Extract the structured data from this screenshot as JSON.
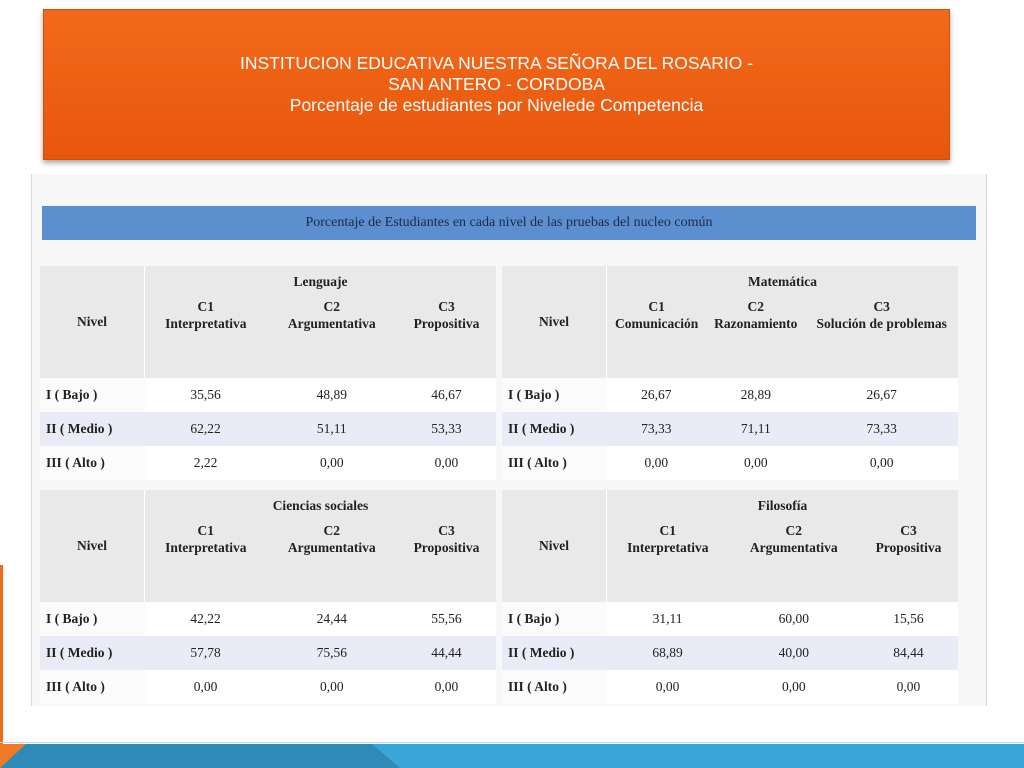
{
  "title": {
    "line1": "INSTITUCION EDUCATIVA NUESTRA SEÑORA DEL ROSARIO -",
    "line2": "SAN ANTERO - CORDOBA",
    "line3": "Porcentaje de estudiantes por Nivelede Competencia"
  },
  "banner": "Porcentaje de Estudiantes en cada nivel de las pruebas del nucleo común",
  "nivel_header": "Nivel",
  "tables": [
    {
      "subject": "Lenguaje",
      "competencies": [
        {
          "code": "C1",
          "name": "Interpretativa"
        },
        {
          "code": "C2",
          "name": "Argumentativa"
        },
        {
          "code": "C3",
          "name": "Propositiva"
        }
      ],
      "rows": [
        {
          "level": "I ( Bajo )",
          "values": [
            "35,56",
            "48,89",
            "46,67"
          ]
        },
        {
          "level": "II ( Medio )",
          "values": [
            "62,22",
            "51,11",
            "53,33"
          ]
        },
        {
          "level": "III ( Alto )",
          "values": [
            "2,22",
            "0,00",
            "0,00"
          ]
        }
      ]
    },
    {
      "subject": "Matemática",
      "competencies": [
        {
          "code": "C1",
          "name": "Comunicación"
        },
        {
          "code": "C2",
          "name": "Razonamiento"
        },
        {
          "code": "C3",
          "name": "Solución de problemas"
        }
      ],
      "rows": [
        {
          "level": "I ( Bajo )",
          "values": [
            "26,67",
            "28,89",
            "26,67"
          ]
        },
        {
          "level": "II ( Medio )",
          "values": [
            "73,33",
            "71,11",
            "73,33"
          ]
        },
        {
          "level": "III ( Alto )",
          "values": [
            "0,00",
            "0,00",
            "0,00"
          ]
        }
      ]
    },
    {
      "subject": "Ciencias sociales",
      "competencies": [
        {
          "code": "C1",
          "name": "Interpretativa"
        },
        {
          "code": "C2",
          "name": "Argumentativa"
        },
        {
          "code": "C3",
          "name": "Propositiva"
        }
      ],
      "rows": [
        {
          "level": "I ( Bajo )",
          "values": [
            "42,22",
            "24,44",
            "55,56"
          ]
        },
        {
          "level": "II ( Medio )",
          "values": [
            "57,78",
            "75,56",
            "44,44"
          ]
        },
        {
          "level": "III ( Alto )",
          "values": [
            "0,00",
            "0,00",
            "0,00"
          ]
        }
      ]
    },
    {
      "subject": "Filosofía",
      "competencies": [
        {
          "code": "C1",
          "name": "Interpretativa"
        },
        {
          "code": "C2",
          "name": "Argumentativa"
        },
        {
          "code": "C3",
          "name": "Propositiva"
        }
      ],
      "rows": [
        {
          "level": "I ( Bajo )",
          "values": [
            "31,11",
            "60,00",
            "15,56"
          ]
        },
        {
          "level": "II ( Medio )",
          "values": [
            "68,89",
            "40,00",
            "84,44"
          ]
        },
        {
          "level": "III ( Alto )",
          "values": [
            "0,00",
            "0,00",
            "0,00"
          ]
        }
      ]
    }
  ],
  "colors": {
    "title_bg": "#e8560c",
    "banner_bg": "#5b8fd0",
    "alt_row": "#e9ecf7",
    "accent_blue": "#39a6d8"
  }
}
